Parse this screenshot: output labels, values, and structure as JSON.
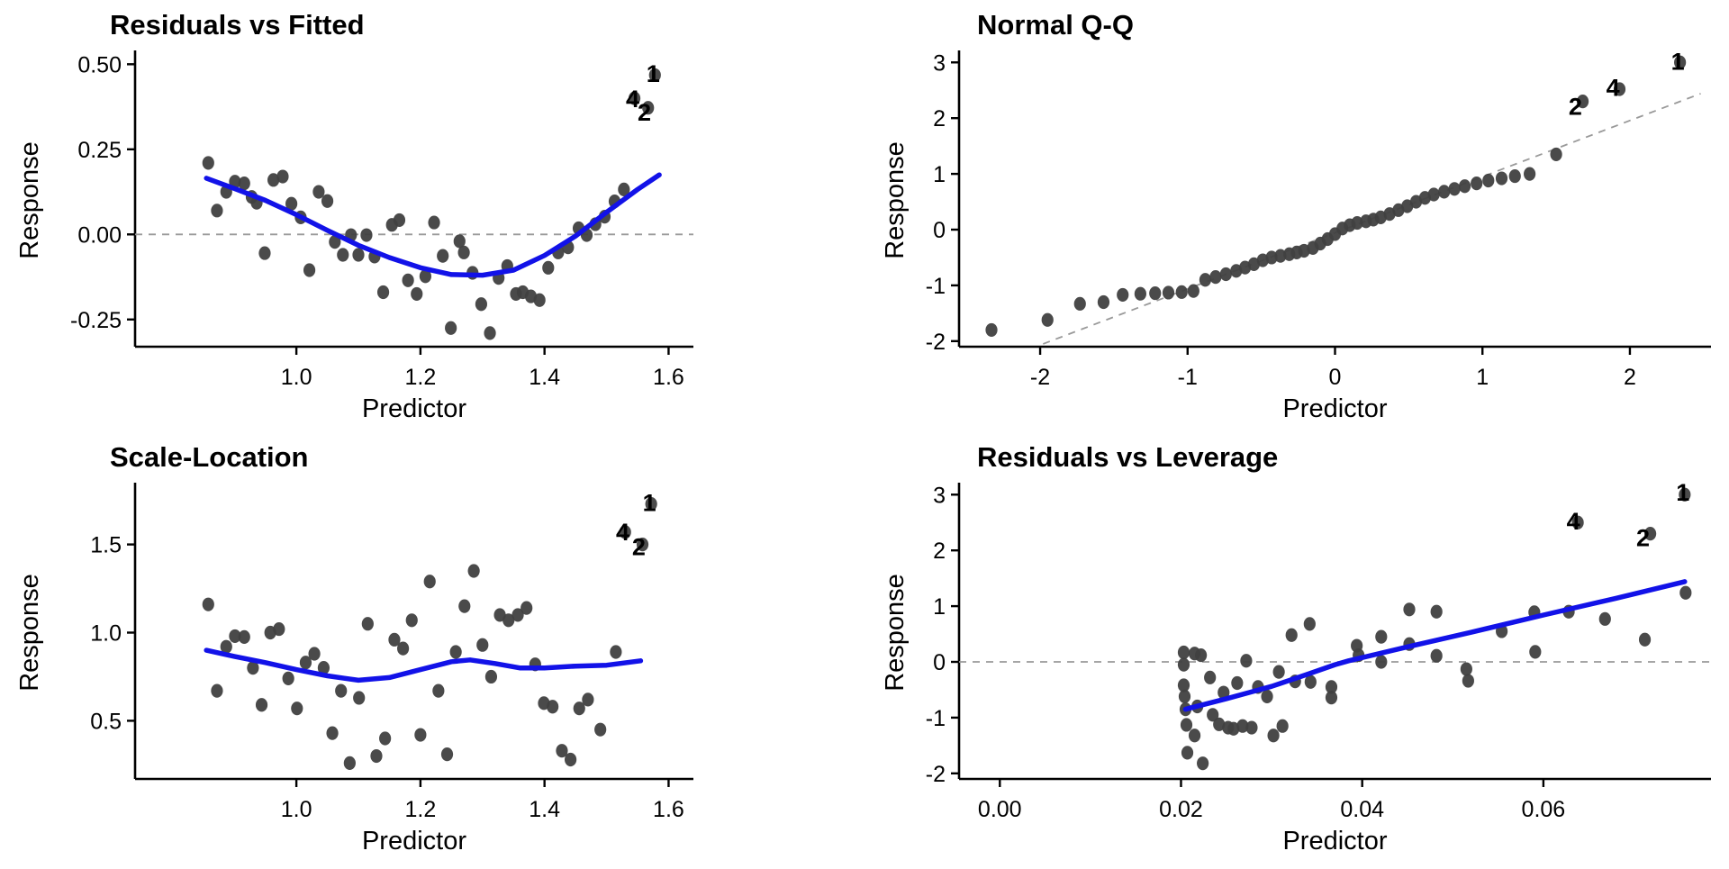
{
  "figure": {
    "background": "#ffffff",
    "point_color": "#404040",
    "smooth_color": "#1212E8",
    "ref_color": "#999999",
    "axis_color": "#000000",
    "text_color": "#000000"
  },
  "chart_data": [
    {
      "id": "residuals-vs-fitted",
      "type": "scatter",
      "title": "Residuals vs Fitted",
      "xlabel": "Predictor",
      "ylabel": "Response",
      "xlim": [
        0.74,
        1.64
      ],
      "ylim": [
        -0.33,
        0.53
      ],
      "grid": false,
      "legend": null,
      "xticks": {
        "values": [
          1.0,
          1.2,
          1.4,
          1.6
        ],
        "labels": [
          "1.0",
          "1.2",
          "1.4",
          "1.6"
        ]
      },
      "yticks": {
        "values": [
          -0.25,
          0.0,
          0.25,
          0.5
        ],
        "labels": [
          "-0.25",
          "0.00",
          "0.25",
          "0.50"
        ]
      },
      "ref_line": {
        "kind": "hline",
        "y": 0
      },
      "smooth": [
        [
          0.855,
          0.165
        ],
        [
          0.9,
          0.135
        ],
        [
          0.95,
          0.1
        ],
        [
          1.0,
          0.058
        ],
        [
          1.05,
          0.012
        ],
        [
          1.1,
          -0.032
        ],
        [
          1.15,
          -0.068
        ],
        [
          1.2,
          -0.098
        ],
        [
          1.25,
          -0.118
        ],
        [
          1.3,
          -0.12
        ],
        [
          1.35,
          -0.105
        ],
        [
          1.4,
          -0.062
        ],
        [
          1.45,
          -0.005
        ],
        [
          1.5,
          0.065
        ],
        [
          1.55,
          0.132
        ],
        [
          1.585,
          0.175
        ]
      ],
      "points": [
        [
          0.858,
          0.21
        ],
        [
          0.872,
          0.07
        ],
        [
          0.887,
          0.125
        ],
        [
          0.901,
          0.155
        ],
        [
          0.916,
          0.15
        ],
        [
          0.928,
          0.11
        ],
        [
          0.936,
          0.093
        ],
        [
          0.949,
          -0.055
        ],
        [
          0.963,
          0.16
        ],
        [
          0.978,
          0.17
        ],
        [
          0.992,
          0.09
        ],
        [
          1.007,
          0.05
        ],
        [
          1.021,
          -0.105
        ],
        [
          1.036,
          0.125
        ],
        [
          1.05,
          0.098
        ],
        [
          1.062,
          -0.022
        ],
        [
          1.075,
          -0.06
        ],
        [
          1.088,
          -0.002
        ],
        [
          1.1,
          -0.06
        ],
        [
          1.113,
          -0.002
        ],
        [
          1.126,
          -0.065
        ],
        [
          1.14,
          -0.17
        ],
        [
          1.154,
          0.028
        ],
        [
          1.166,
          0.042
        ],
        [
          1.18,
          -0.135
        ],
        [
          1.194,
          -0.175
        ],
        [
          1.208,
          -0.123
        ],
        [
          1.222,
          0.035
        ],
        [
          1.236,
          -0.063
        ],
        [
          1.249,
          -0.275
        ],
        [
          1.263,
          -0.02
        ],
        [
          1.27,
          -0.053
        ],
        [
          1.284,
          -0.113
        ],
        [
          1.298,
          -0.205
        ],
        [
          1.312,
          -0.29
        ],
        [
          1.326,
          -0.128
        ],
        [
          1.34,
          -0.093
        ],
        [
          1.354,
          -0.175
        ],
        [
          1.365,
          -0.17
        ],
        [
          1.378,
          -0.182
        ],
        [
          1.392,
          -0.193
        ],
        [
          1.406,
          -0.098
        ],
        [
          1.422,
          -0.053
        ],
        [
          1.438,
          -0.038
        ],
        [
          1.455,
          0.018
        ],
        [
          1.468,
          -0.002
        ],
        [
          1.482,
          0.03
        ],
        [
          1.497,
          0.052
        ],
        [
          1.513,
          0.097
        ],
        [
          1.528,
          0.132
        ]
      ],
      "labeled_points": [
        {
          "label": "1",
          "x": 1.578,
          "y": 0.468,
          "lx": 1.575,
          "ly": 0.475
        },
        {
          "label": "4",
          "x": 1.545,
          "y": 0.4,
          "lx": 1.542,
          "ly": 0.4
        },
        {
          "label": "2",
          "x": 1.567,
          "y": 0.372,
          "lx": 1.561,
          "ly": 0.36
        }
      ]
    },
    {
      "id": "normal-qq",
      "type": "scatter",
      "title": "Normal Q-Q",
      "xlabel": "Predictor",
      "ylabel": "Response",
      "xlim": [
        -2.55,
        2.55
      ],
      "ylim": [
        -2.1,
        3.15
      ],
      "grid": false,
      "legend": null,
      "xticks": {
        "values": [
          -2,
          -1,
          0,
          1,
          2
        ],
        "labels": [
          "-2",
          "-1",
          "0",
          "1",
          "2"
        ]
      },
      "yticks": {
        "values": [
          -2,
          -1,
          0,
          1,
          2,
          3
        ],
        "labels": [
          "-2",
          "-1",
          "0",
          "1",
          "2",
          "3"
        ]
      },
      "ref_line": {
        "kind": "segment",
        "x1": -1.98,
        "y1": -2.05,
        "x2": 2.48,
        "y2": 2.44
      },
      "smooth": null,
      "points": [
        [
          -2.33,
          -1.8
        ],
        [
          -1.95,
          -1.62
        ],
        [
          -1.73,
          -1.33
        ],
        [
          -1.57,
          -1.3
        ],
        [
          -1.44,
          -1.17
        ],
        [
          -1.32,
          -1.15
        ],
        [
          -1.22,
          -1.14
        ],
        [
          -1.13,
          -1.13
        ],
        [
          -1.04,
          -1.12
        ],
        [
          -0.96,
          -1.1
        ],
        [
          -0.88,
          -0.9
        ],
        [
          -0.81,
          -0.85
        ],
        [
          -0.74,
          -0.8
        ],
        [
          -0.67,
          -0.74
        ],
        [
          -0.61,
          -0.68
        ],
        [
          -0.55,
          -0.62
        ],
        [
          -0.49,
          -0.55
        ],
        [
          -0.43,
          -0.5
        ],
        [
          -0.37,
          -0.47
        ],
        [
          -0.31,
          -0.44
        ],
        [
          -0.26,
          -0.41
        ],
        [
          -0.21,
          -0.38
        ],
        [
          -0.15,
          -0.33
        ],
        [
          -0.1,
          -0.25
        ],
        [
          -0.05,
          -0.17
        ],
        [
          0.0,
          -0.08
        ],
        [
          0.05,
          0.02
        ],
        [
          0.1,
          0.08
        ],
        [
          0.15,
          0.12
        ],
        [
          0.21,
          0.15
        ],
        [
          0.26,
          0.18
        ],
        [
          0.31,
          0.22
        ],
        [
          0.37,
          0.28
        ],
        [
          0.43,
          0.35
        ],
        [
          0.49,
          0.42
        ],
        [
          0.55,
          0.5
        ],
        [
          0.61,
          0.57
        ],
        [
          0.67,
          0.63
        ],
        [
          0.74,
          0.68
        ],
        [
          0.81,
          0.73
        ],
        [
          0.88,
          0.78
        ],
        [
          0.96,
          0.83
        ],
        [
          1.04,
          0.88
        ],
        [
          1.13,
          0.92
        ],
        [
          1.22,
          0.96
        ],
        [
          1.32,
          1.0
        ],
        [
          1.5,
          1.35
        ]
      ],
      "labeled_points": [
        {
          "label": "1",
          "x": 2.34,
          "y": 3.0,
          "lx": 2.325,
          "ly": 3.03
        },
        {
          "label": "4",
          "x": 1.93,
          "y": 2.52,
          "lx": 1.885,
          "ly": 2.56
        },
        {
          "label": "2",
          "x": 1.68,
          "y": 2.3,
          "lx": 1.63,
          "ly": 2.22
        }
      ]
    },
    {
      "id": "scale-location",
      "type": "scatter",
      "title": "Scale-Location",
      "xlabel": "Predictor",
      "ylabel": "Response",
      "xlim": [
        0.74,
        1.64
      ],
      "ylim": [
        0.17,
        1.83
      ],
      "grid": false,
      "legend": null,
      "xticks": {
        "values": [
          1.0,
          1.2,
          1.4,
          1.6
        ],
        "labels": [
          "1.0",
          "1.2",
          "1.4",
          "1.6"
        ]
      },
      "yticks": {
        "values": [
          0.5,
          1.0,
          1.5
        ],
        "labels": [
          "0.5",
          "1.0",
          "1.5"
        ]
      },
      "ref_line": null,
      "smooth": [
        [
          0.855,
          0.9
        ],
        [
          0.9,
          0.865
        ],
        [
          0.95,
          0.83
        ],
        [
          1.0,
          0.79
        ],
        [
          1.05,
          0.755
        ],
        [
          1.1,
          0.73
        ],
        [
          1.15,
          0.745
        ],
        [
          1.2,
          0.79
        ],
        [
          1.25,
          0.835
        ],
        [
          1.28,
          0.845
        ],
        [
          1.32,
          0.825
        ],
        [
          1.36,
          0.8
        ],
        [
          1.4,
          0.8
        ],
        [
          1.45,
          0.81
        ],
        [
          1.5,
          0.815
        ],
        [
          1.555,
          0.84
        ]
      ],
      "points": [
        [
          0.858,
          1.16
        ],
        [
          0.872,
          0.67
        ],
        [
          0.887,
          0.92
        ],
        [
          0.901,
          0.98
        ],
        [
          0.916,
          0.975
        ],
        [
          0.93,
          0.8
        ],
        [
          0.944,
          0.59
        ],
        [
          0.958,
          1.0
        ],
        [
          0.972,
          1.02
        ],
        [
          0.987,
          0.74
        ],
        [
          1.001,
          0.57
        ],
        [
          1.015,
          0.83
        ],
        [
          1.029,
          0.88
        ],
        [
          1.044,
          0.8
        ],
        [
          1.058,
          0.43
        ],
        [
          1.072,
          0.67
        ],
        [
          1.086,
          0.26
        ],
        [
          1.101,
          0.63
        ],
        [
          1.115,
          1.05
        ],
        [
          1.129,
          0.3
        ],
        [
          1.143,
          0.4
        ],
        [
          1.158,
          0.96
        ],
        [
          1.172,
          0.91
        ],
        [
          1.186,
          1.07
        ],
        [
          1.2,
          0.42
        ],
        [
          1.215,
          1.29
        ],
        [
          1.229,
          0.67
        ],
        [
          1.243,
          0.31
        ],
        [
          1.257,
          0.89
        ],
        [
          1.271,
          1.15
        ],
        [
          1.286,
          1.35
        ],
        [
          1.3,
          0.93
        ],
        [
          1.314,
          0.75
        ],
        [
          1.328,
          1.1
        ],
        [
          1.342,
          1.07
        ],
        [
          1.357,
          1.1
        ],
        [
          1.371,
          1.14
        ],
        [
          1.385,
          0.82
        ],
        [
          1.399,
          0.6
        ],
        [
          1.413,
          0.58
        ],
        [
          1.428,
          0.33
        ],
        [
          1.442,
          0.28
        ],
        [
          1.456,
          0.57
        ],
        [
          1.47,
          0.62
        ],
        [
          1.49,
          0.45
        ],
        [
          1.515,
          0.89
        ]
      ],
      "labeled_points": [
        {
          "label": "1",
          "x": 1.572,
          "y": 1.73,
          "lx": 1.569,
          "ly": 1.74
        },
        {
          "label": "4",
          "x": 1.53,
          "y": 1.57,
          "lx": 1.526,
          "ly": 1.575
        },
        {
          "label": "2",
          "x": 1.558,
          "y": 1.5,
          "lx": 1.552,
          "ly": 1.49
        }
      ]
    },
    {
      "id": "residuals-vs-leverage",
      "type": "scatter",
      "title": "Residuals vs Leverage",
      "xlabel": "Predictor",
      "ylabel": "Response",
      "xlim": [
        -0.0045,
        0.0785
      ],
      "ylim": [
        -2.1,
        3.15
      ],
      "grid": false,
      "legend": null,
      "xticks": {
        "values": [
          0.0,
          0.02,
          0.04,
          0.06
        ],
        "labels": [
          "0.00",
          "0.02",
          "0.04",
          "0.06"
        ]
      },
      "yticks": {
        "values": [
          -2,
          -1,
          0,
          1,
          2,
          3
        ],
        "labels": [
          "-2",
          "-1",
          "0",
          "1",
          "2",
          "3"
        ]
      },
      "ref_line": {
        "kind": "hline",
        "y": 0
      },
      "smooth": [
        [
          0.0205,
          -0.85
        ],
        [
          0.025,
          -0.66
        ],
        [
          0.03,
          -0.44
        ],
        [
          0.034,
          -0.22
        ],
        [
          0.037,
          -0.05
        ],
        [
          0.0385,
          0.02
        ],
        [
          0.045,
          0.27
        ],
        [
          0.052,
          0.53
        ],
        [
          0.06,
          0.84
        ],
        [
          0.068,
          1.14
        ],
        [
          0.0756,
          1.44
        ]
      ],
      "points": [
        [
          0.0203,
          0.17
        ],
        [
          0.0203,
          -0.05
        ],
        [
          0.0203,
          -0.42
        ],
        [
          0.0204,
          -0.62
        ],
        [
          0.0205,
          -0.85
        ],
        [
          0.0206,
          -1.13
        ],
        [
          0.0207,
          -1.63
        ],
        [
          0.0215,
          0.15
        ],
        [
          0.0215,
          -1.32
        ],
        [
          0.0218,
          -0.8
        ],
        [
          0.0222,
          0.12
        ],
        [
          0.0224,
          -1.82
        ],
        [
          0.0232,
          -0.28
        ],
        [
          0.0235,
          -0.95
        ],
        [
          0.0242,
          -1.12
        ],
        [
          0.0247,
          -0.55
        ],
        [
          0.0252,
          -1.18
        ],
        [
          0.0258,
          -1.2
        ],
        [
          0.0262,
          -0.38
        ],
        [
          0.0268,
          -1.15
        ],
        [
          0.0272,
          0.02
        ],
        [
          0.0278,
          -1.18
        ],
        [
          0.0285,
          -0.45
        ],
        [
          0.0295,
          -0.62
        ],
        [
          0.0302,
          -1.32
        ],
        [
          0.0308,
          -0.18
        ],
        [
          0.0312,
          -1.15
        ],
        [
          0.0322,
          0.48
        ],
        [
          0.0326,
          -0.35
        ],
        [
          0.0342,
          0.68
        ],
        [
          0.0343,
          -0.36
        ],
        [
          0.0366,
          -0.45
        ],
        [
          0.0366,
          -0.64
        ],
        [
          0.0394,
          0.29
        ],
        [
          0.0396,
          0.12
        ],
        [
          0.0421,
          0.45
        ],
        [
          0.0421,
          0.0
        ],
        [
          0.0452,
          0.94
        ],
        [
          0.0452,
          0.32
        ],
        [
          0.0482,
          0.9
        ],
        [
          0.0482,
          0.11
        ],
        [
          0.0515,
          -0.13
        ],
        [
          0.0517,
          -0.34
        ],
        [
          0.0554,
          0.55
        ],
        [
          0.059,
          0.89
        ],
        [
          0.0591,
          0.18
        ],
        [
          0.0628,
          0.9
        ],
        [
          0.0668,
          0.77
        ],
        [
          0.0712,
          0.4
        ],
        [
          0.0757,
          1.24
        ]
      ],
      "labeled_points": [
        {
          "label": "1",
          "x": 0.0756,
          "y": 3.0,
          "lx": 0.0754,
          "ly": 3.05
        },
        {
          "label": "4",
          "x": 0.0638,
          "y": 2.5,
          "lx": 0.0633,
          "ly": 2.54
        },
        {
          "label": "2",
          "x": 0.0718,
          "y": 2.3,
          "lx": 0.071,
          "ly": 2.24
        }
      ]
    }
  ]
}
